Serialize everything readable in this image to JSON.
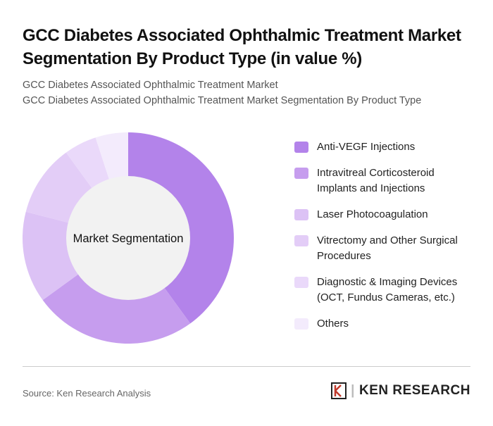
{
  "title": "GCC Diabetes Associated Ophthalmic Treatment Market Segmentation By Product Type (in value %)",
  "subtitle_1": "GCC Diabetes Associated Ophthalmic Treatment Market",
  "subtitle_2": "GCC Diabetes Associated Ophthalmic Treatment Market Segmentation By Product Type",
  "source": "Source: Ken Research Analysis",
  "logo_text": "KEN RESEARCH",
  "chart_data": {
    "type": "pie",
    "donut": true,
    "center_label": "Market Segmentation",
    "legend_position": "right",
    "categories": [
      "Anti-VEGF Injections",
      "Intravitreal Corticosteroid Implants and Injections",
      "Laser Photocoagulation",
      "Vitrectomy and Other Surgical Procedures",
      "Diagnostic & Imaging Devices (OCT, Fundus Cameras, etc.)",
      "Others"
    ],
    "values": [
      40,
      25,
      14,
      11,
      5,
      5
    ],
    "colors": [
      "#b383ea",
      "#c69dee",
      "#dcc2f5",
      "#e3cdf7",
      "#ead9fa",
      "#f3ebfc"
    ]
  }
}
